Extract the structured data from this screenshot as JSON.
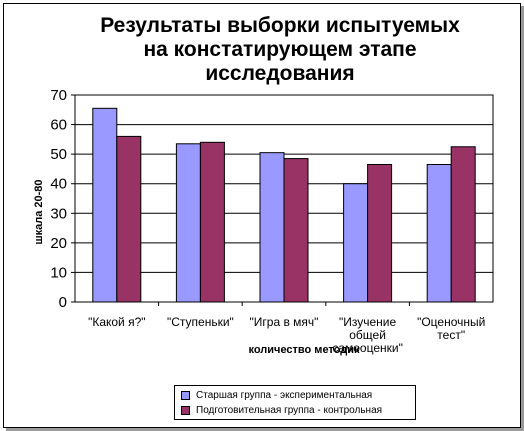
{
  "chart_data": {
    "type": "bar",
    "title_lines": [
      "Результаты выборки испытуемых",
      "на констатирующем этапе",
      "исследования"
    ],
    "xlabel": "количество методик",
    "ylabel": "шкала 20-80",
    "ylim": [
      0,
      70
    ],
    "yticks": [
      "0",
      "10",
      "20",
      "30",
      "40",
      "50",
      "60",
      "70"
    ],
    "grid": true,
    "legend_position": "bottom",
    "categories": [
      [
        "\"Какой я?\""
      ],
      [
        "\"Ступеньки\""
      ],
      [
        "\"Игра в мяч\""
      ],
      [
        "\"Изучение",
        "общей",
        "самооценки\""
      ],
      [
        "\"Оценочный",
        "тест\""
      ]
    ],
    "series": [
      {
        "name": "Старшая группа - экспериментальная",
        "color": "#9999ff",
        "values": [
          65.5,
          53.5,
          50.5,
          40,
          46.5
        ]
      },
      {
        "name": "Подготовительная группа - контрольная",
        "color": "#993366",
        "values": [
          56,
          54,
          48.5,
          46.5,
          52.5
        ]
      }
    ]
  }
}
